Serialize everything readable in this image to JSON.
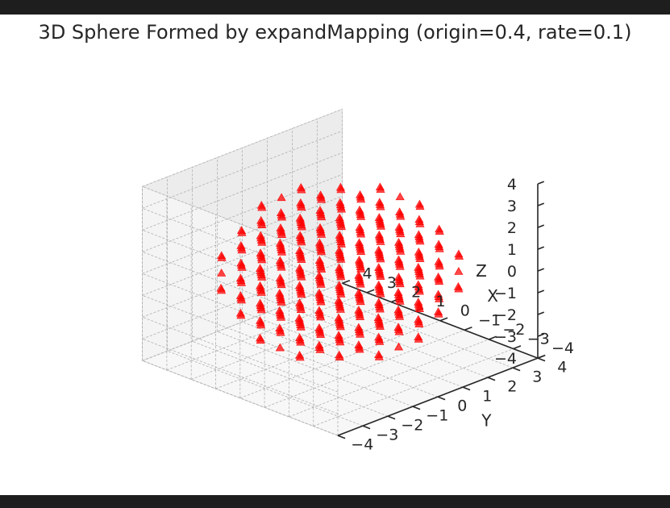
{
  "chart_data": {
    "type": "scatter",
    "projection": "3d",
    "title": "3D Sphere Formed by expandMapping (origin=0.4, rate=0.1)",
    "xlabel": "X",
    "ylabel": "Y",
    "zlabel": "Z",
    "xlim": [
      -4,
      4
    ],
    "ylim": [
      -4,
      4
    ],
    "zlim": [
      -4,
      4
    ],
    "ticks": [
      -4,
      -3,
      -2,
      -1,
      0,
      1,
      2,
      3,
      4
    ],
    "grid": true,
    "marker": "triangle",
    "series": [
      {
        "color": "#ff0000",
        "grid_values": [
          -3.2,
          -2.4,
          -1.6,
          -0.8,
          0,
          0.8,
          1.6,
          2.4,
          3.2
        ],
        "radius": 3.6,
        "points": "all (x, y, z) on the grid with x² + y² + z² ≤ radius²"
      }
    ]
  }
}
